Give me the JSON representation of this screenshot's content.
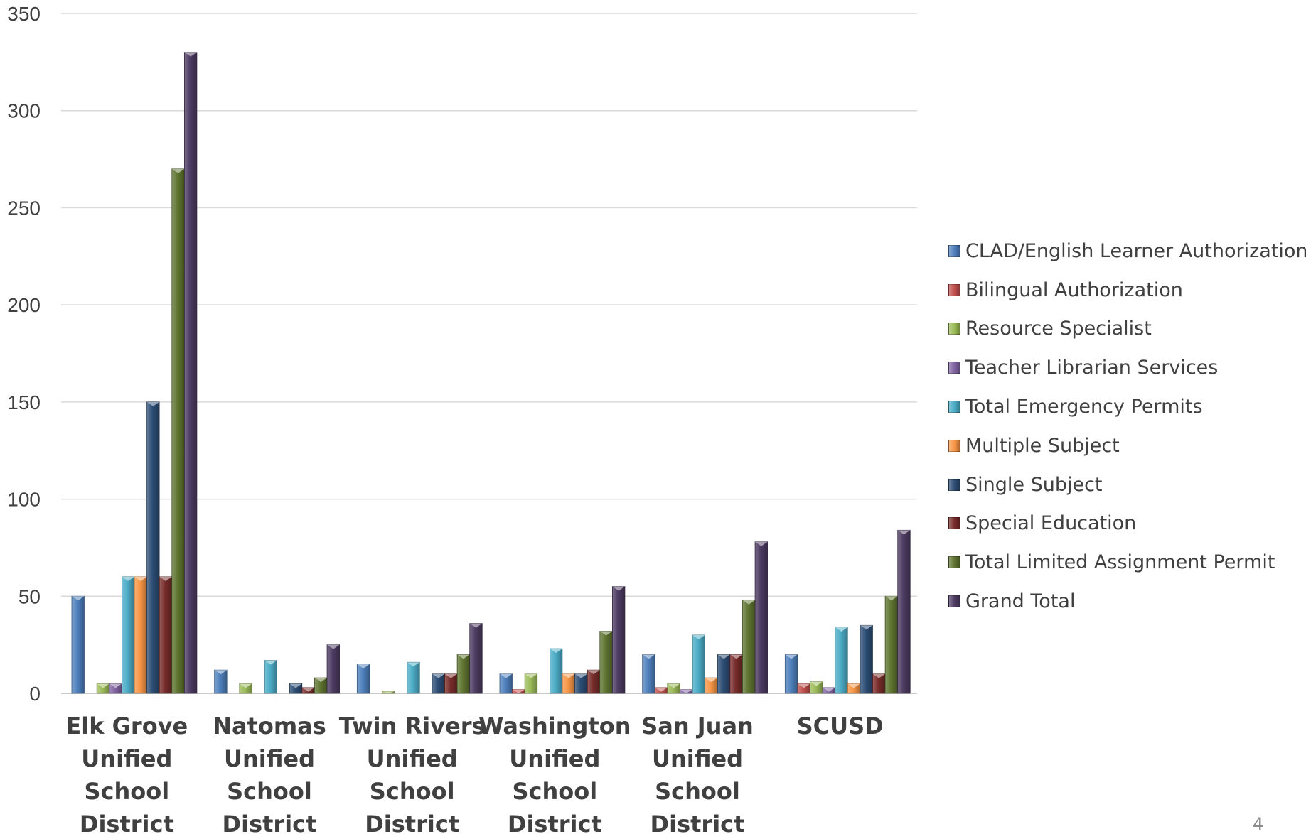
{
  "chart_data": {
    "type": "bar",
    "categories": [
      "Elk Grove Unified School District",
      "Natomas Unified School District",
      "Twin Rivers Unified School District",
      "Washington Unified School District",
      "San Juan Unified School District",
      "SCUSD"
    ],
    "ylim": [
      0,
      350
    ],
    "yticks": [
      0,
      50,
      100,
      150,
      200,
      250,
      300,
      350
    ],
    "grid": true,
    "legend_position": "right",
    "series": [
      {
        "name": "CLAD/English Learner Authorization",
        "color": "#4f81bd",
        "values": [
          50,
          12,
          15,
          10,
          20,
          20
        ]
      },
      {
        "name": "Bilingual Authorization",
        "color": "#c0504d",
        "values": [
          0,
          0,
          0,
          2,
          3,
          5
        ]
      },
      {
        "name": "Resource Specialist",
        "color": "#9bbb59",
        "values": [
          5,
          5,
          1,
          10,
          5,
          6
        ]
      },
      {
        "name": "Teacher Librarian Services",
        "color": "#8064a2",
        "values": [
          5,
          0,
          0,
          0,
          2,
          3
        ]
      },
      {
        "name": "Total Emergency Permits",
        "color": "#4bacc6",
        "values": [
          60,
          17,
          16,
          23,
          30,
          34
        ]
      },
      {
        "name": "Multiple Subject",
        "color": "#f79646",
        "values": [
          60,
          0,
          0,
          10,
          8,
          5
        ]
      },
      {
        "name": "Single Subject",
        "color": "#2c4d75",
        "values": [
          150,
          5,
          10,
          10,
          20,
          35
        ]
      },
      {
        "name": "Special Education",
        "color": "#772c2a",
        "values": [
          60,
          3,
          10,
          12,
          20,
          10
        ]
      },
      {
        "name": "Total Limited Assignment Permit",
        "color": "#5f7530",
        "values": [
          270,
          8,
          20,
          32,
          48,
          50
        ]
      },
      {
        "name": "Grand Total",
        "color": "#4d3b62",
        "values": [
          330,
          25,
          36,
          55,
          78,
          84
        ]
      }
    ]
  },
  "page_number": "4"
}
